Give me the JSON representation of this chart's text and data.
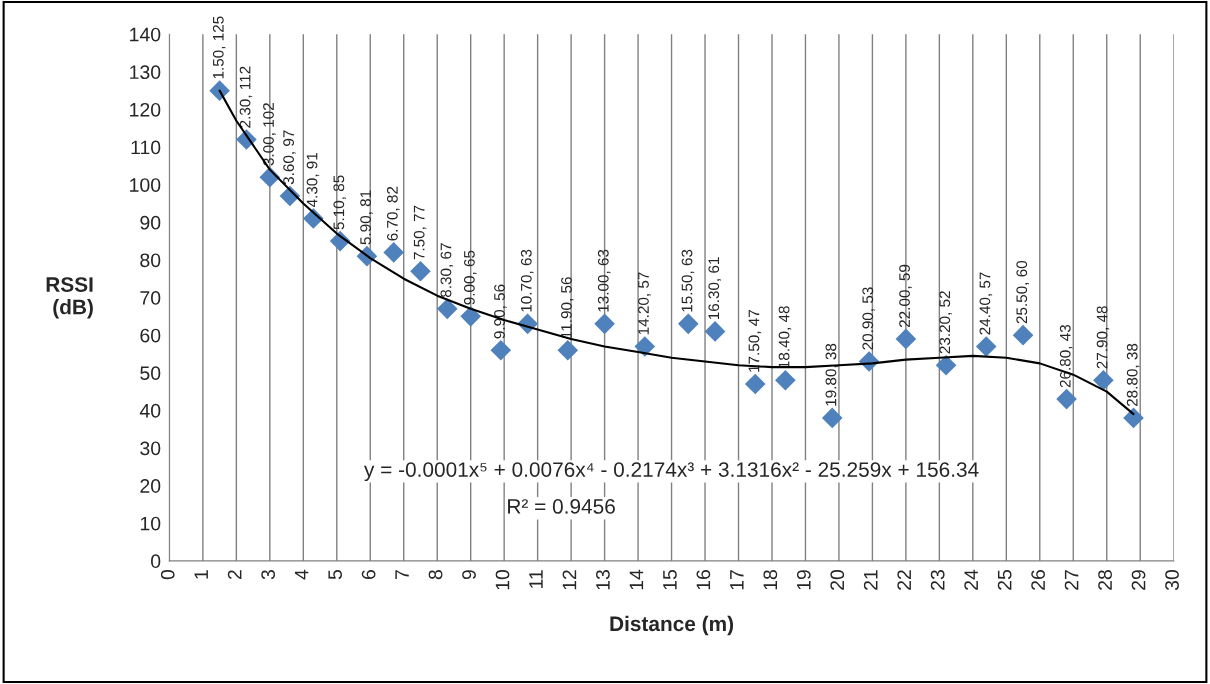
{
  "chart_data": {
    "type": "scatter",
    "xlabel": "Distance (m)",
    "ylabel": "RSSI\n(dB)",
    "xlim": [
      0,
      30
    ],
    "xticks": [
      0,
      1,
      2,
      3,
      4,
      5,
      6,
      7,
      8,
      9,
      10,
      11,
      12,
      13,
      14,
      15,
      16,
      17,
      18,
      19,
      20,
      21,
      22,
      23,
      24,
      25,
      26,
      27,
      28,
      29,
      30
    ],
    "ylim": [
      0,
      140
    ],
    "yticks": [
      0,
      10,
      20,
      30,
      40,
      50,
      60,
      70,
      80,
      90,
      100,
      110,
      120,
      130,
      140
    ],
    "grid": "x",
    "marker": "diamond",
    "series": [
      {
        "color": "#4f81bd",
        "x": [
          1.5,
          2.3,
          3.0,
          3.6,
          4.3,
          5.1,
          5.9,
          6.7,
          7.5,
          8.3,
          9.0,
          9.9,
          10.7,
          11.9,
          13.0,
          14.2,
          15.5,
          16.3,
          17.5,
          18.4,
          19.8,
          20.9,
          22.0,
          23.2,
          24.4,
          25.5,
          26.8,
          27.9,
          28.8
        ],
        "values": [
          125,
          112,
          102,
          97,
          91,
          85,
          81,
          82,
          77,
          67,
          65,
          56,
          63,
          56,
          63,
          57,
          63,
          61,
          47,
          48,
          38,
          53,
          59,
          52,
          57,
          60,
          43,
          48,
          38
        ],
        "value_labels": [
          "1.50, 125",
          "2.30, 112",
          "3.00, 102",
          "3.60, 97",
          "4.30, 91",
          "5.10, 85",
          "5.90, 81",
          "6.70, 82",
          "7.50, 77",
          "8.30, 67",
          "9.00, 65",
          "9.90, 56",
          "10.70, 63",
          "11.90, 56",
          "13.00, 63",
          "14.20, 57",
          "15.50, 63",
          "16.30, 61",
          "17.50, 47",
          "18.40, 48",
          "19.80, 38",
          "20.90, 53",
          "22.00, 59",
          "23.20, 52",
          "24.40, 57",
          "25.50, 60",
          "26.80, 43",
          "27.90, 48",
          "28.80, 38"
        ]
      },
      {
        "type": "line",
        "color": "#000000",
        "marker": "none",
        "x": [
          1.5,
          2,
          3,
          4,
          5,
          6,
          7,
          8,
          9,
          10,
          11,
          12,
          13,
          14,
          15,
          16,
          17,
          18,
          19,
          20,
          21,
          22,
          23,
          24,
          25,
          26,
          27,
          28,
          28.8
        ],
        "values": [
          125,
          117,
          104,
          95,
          87,
          80.5,
          75,
          70.5,
          67,
          64,
          61.5,
          59,
          57,
          55.5,
          54,
          53,
          52,
          51.5,
          51.5,
          52,
          52.5,
          53.5,
          54,
          54.5,
          54,
          52.5,
          49.5,
          45,
          39
        ]
      }
    ],
    "annotations": [
      "y = -0.0001x⁵ + 0.0076x⁴ - 0.2174x³ + 3.1316x² - 25.259x + 156.34",
      "R² = 0.9456"
    ]
  }
}
